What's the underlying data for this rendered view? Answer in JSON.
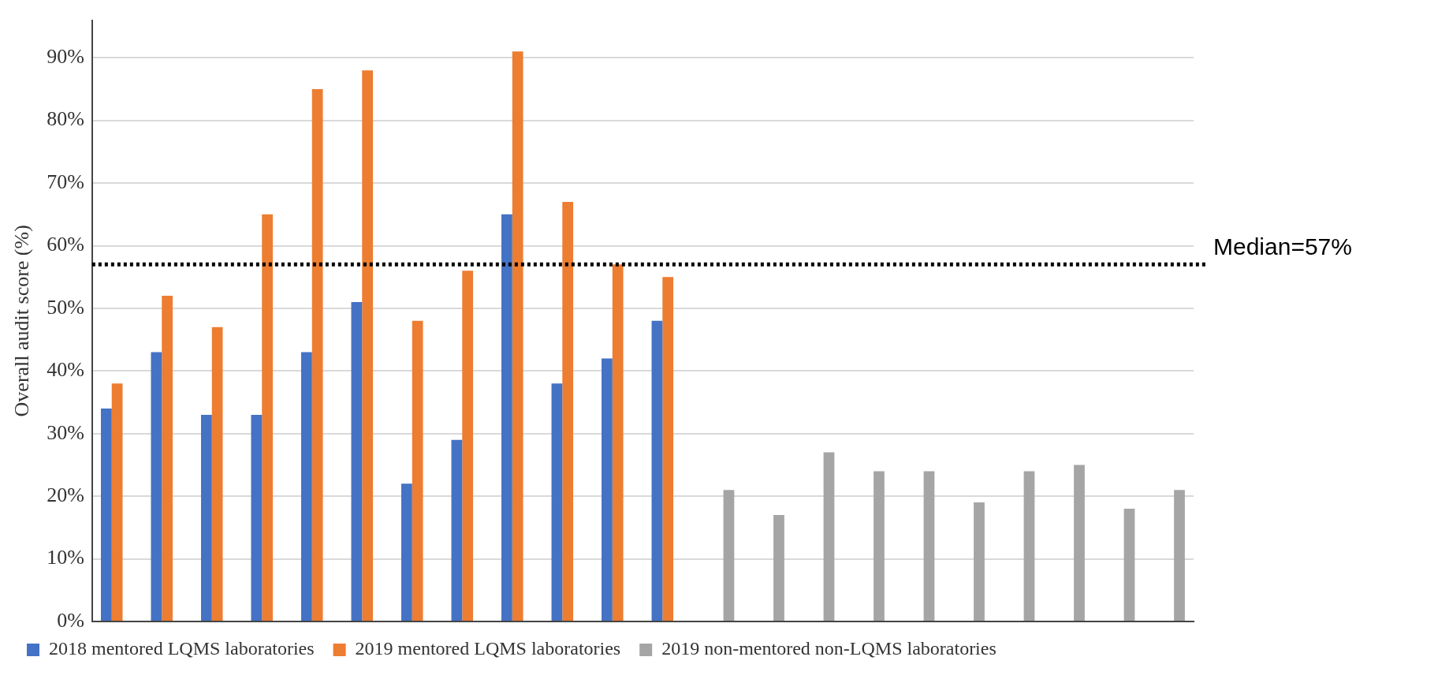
{
  "chart_data": {
    "type": "bar",
    "ylabel": "Overall audit score (%)",
    "categories": [
      null,
      null,
      null,
      null,
      null,
      null,
      null,
      null,
      null,
      null,
      null,
      null,
      null,
      null,
      null,
      null,
      null,
      null,
      null,
      null,
      null,
      null
    ],
    "series": [
      {
        "name": "2018 mentored LQMS laboratories",
        "color": "#4472c4",
        "values": [
          34,
          43,
          33,
          33,
          43,
          51,
          22,
          29,
          65,
          38,
          42,
          48,
          null,
          null,
          null,
          null,
          null,
          null,
          null,
          null,
          null,
          null
        ]
      },
      {
        "name": "2019 mentored LQMS laboratories",
        "color": "#ed7d31",
        "values": [
          38,
          52,
          47,
          65,
          85,
          88,
          48,
          56,
          91,
          67,
          57,
          55,
          null,
          null,
          null,
          null,
          null,
          null,
          null,
          null,
          null,
          null
        ]
      },
      {
        "name": "2019 non-mentored non-LQMS laboratories",
        "color": "#a5a5a5",
        "values": [
          null,
          null,
          null,
          null,
          null,
          null,
          null,
          null,
          null,
          null,
          null,
          null,
          21,
          17,
          27,
          24,
          24,
          19,
          24,
          25,
          18,
          21
        ]
      }
    ],
    "ylim": [
      0,
      96
    ],
    "yticks": [
      {
        "value": 0,
        "label": "0%"
      },
      {
        "value": 10,
        "label": "10%"
      },
      {
        "value": 20,
        "label": "20%"
      },
      {
        "value": 30,
        "label": "30%"
      },
      {
        "value": 40,
        "label": "40%"
      },
      {
        "value": 50,
        "label": "50%"
      },
      {
        "value": 60,
        "label": "60%"
      },
      {
        "value": 70,
        "label": "70%"
      },
      {
        "value": 80,
        "label": "80%"
      },
      {
        "value": 90,
        "label": "90%"
      }
    ],
    "ref_lines": [
      {
        "axis": "y",
        "value": 57,
        "label": "Median=57%",
        "color": "#000000",
        "line_style": "dotted"
      }
    ],
    "grid": "y",
    "legend": "bottom",
    "tick_labels": "y"
  }
}
